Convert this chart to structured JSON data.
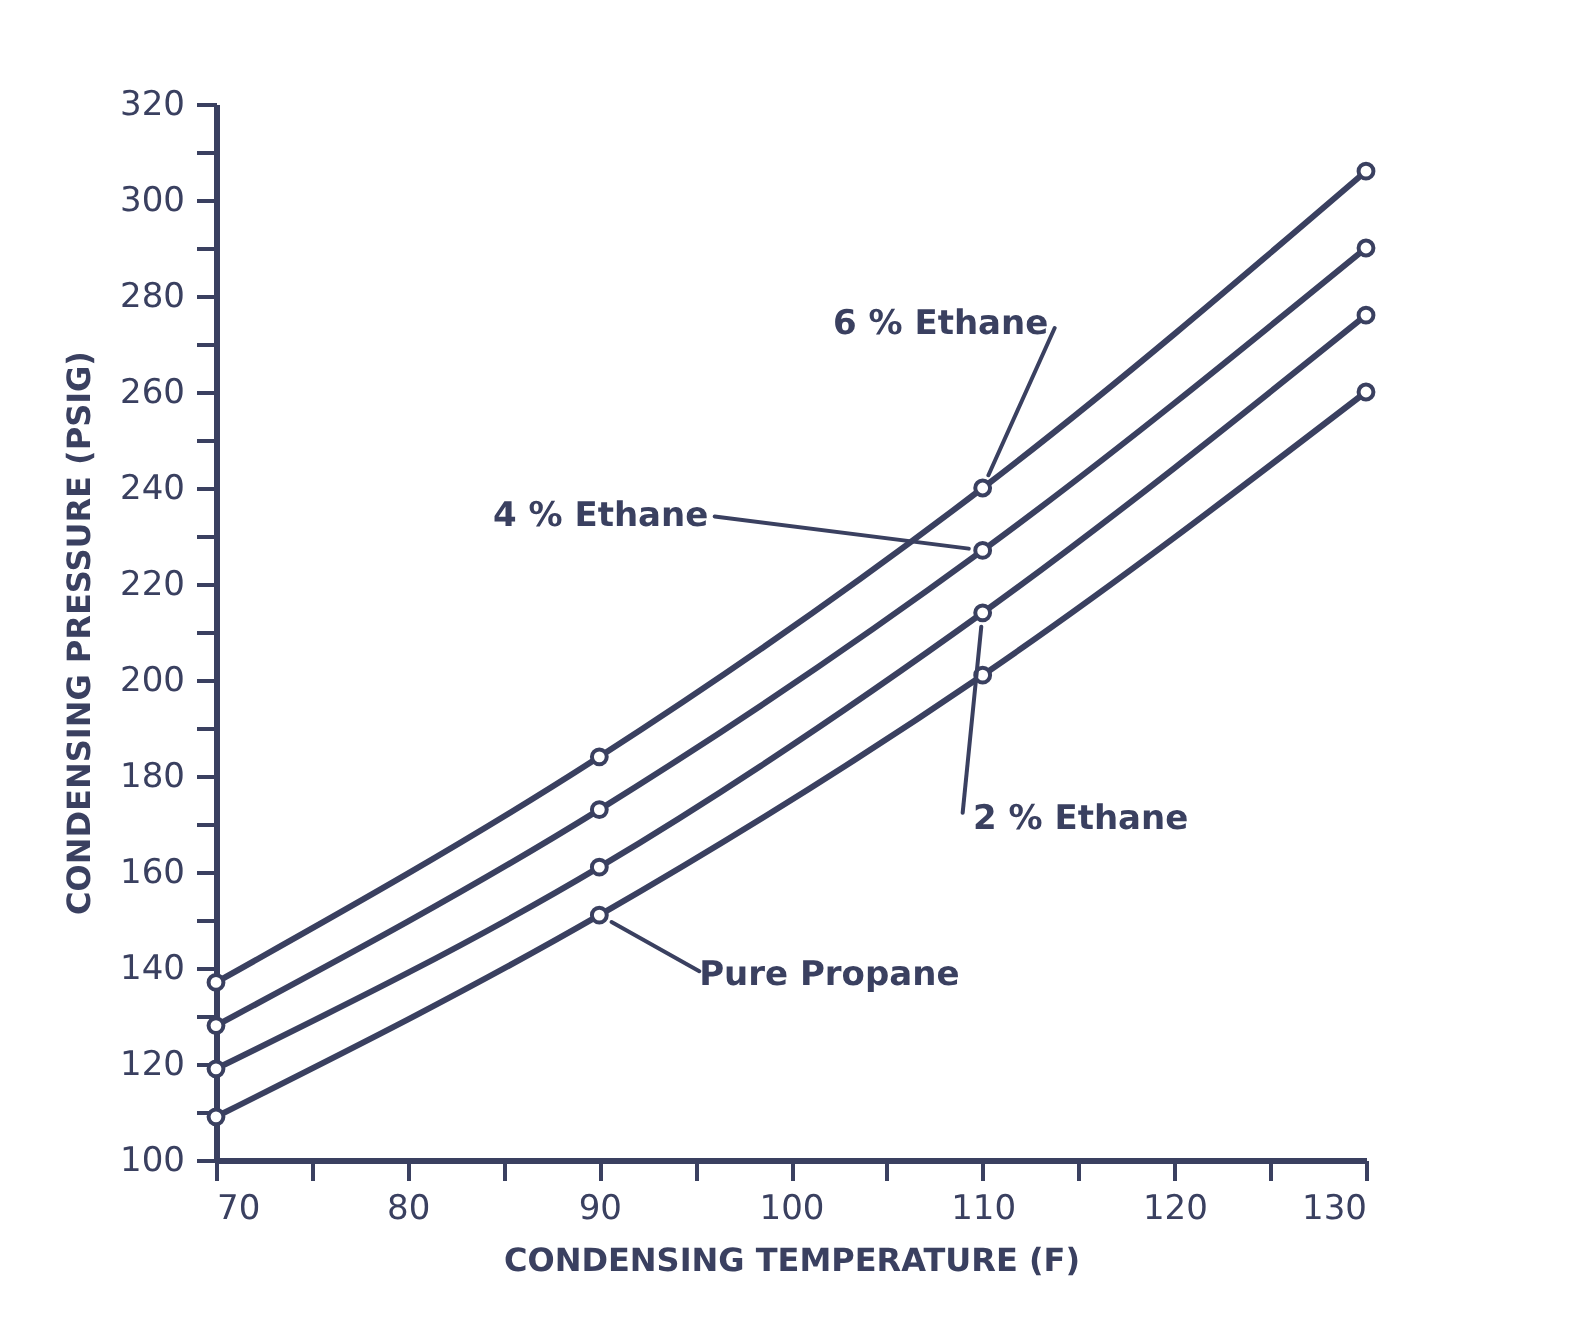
{
  "chart_data": {
    "type": "line",
    "xlabel": "CONDENSING TEMPERATURE (F)",
    "ylabel": "CONDENSING  PRESSURE (PSIG)",
    "x": [
      70,
      90,
      110,
      130
    ],
    "series": [
      {
        "name": "6 % Ethane",
        "color": "#3a4060",
        "values": [
          137,
          184,
          240,
          306
        ]
      },
      {
        "name": "4 % Ethane",
        "color": "#3a4060",
        "values": [
          128,
          173,
          227,
          290
        ]
      },
      {
        "name": "2 % Ethane",
        "color": "#3a4060",
        "values": [
          119,
          161,
          214,
          276
        ]
      },
      {
        "name": "Pure Propane",
        "color": "#3a4060",
        "values": [
          109,
          151,
          201,
          260
        ]
      }
    ],
    "xlim": [
      70,
      130
    ],
    "ylim": [
      100,
      320
    ],
    "xticks": [
      70,
      {
        "value": 75,
        "label": null
      },
      80,
      {
        "value": 85,
        "label": null
      },
      90,
      {
        "value": 95,
        "label": null
      },
      100,
      {
        "value": 105,
        "label": null
      },
      110,
      {
        "value": 115,
        "label": null
      },
      120,
      {
        "value": 125,
        "label": null
      },
      130
    ],
    "yticks": [
      100,
      {
        "value": 110,
        "label": null
      },
      120,
      {
        "value": 130,
        "label": null
      },
      140,
      {
        "value": 150,
        "label": null
      },
      160,
      {
        "value": 170,
        "label": null
      },
      180,
      {
        "value": 190,
        "label": null
      },
      200,
      {
        "value": 210,
        "label": null
      },
      220,
      {
        "value": 230,
        "label": null
      },
      240,
      {
        "value": 250,
        "label": null
      },
      260,
      {
        "value": 270,
        "label": null
      },
      280,
      {
        "value": 290,
        "label": null
      },
      300,
      {
        "value": 310,
        "label": null
      },
      320
    ],
    "grid": false,
    "legend": false,
    "marker": "circle",
    "line_style": "solid"
  }
}
